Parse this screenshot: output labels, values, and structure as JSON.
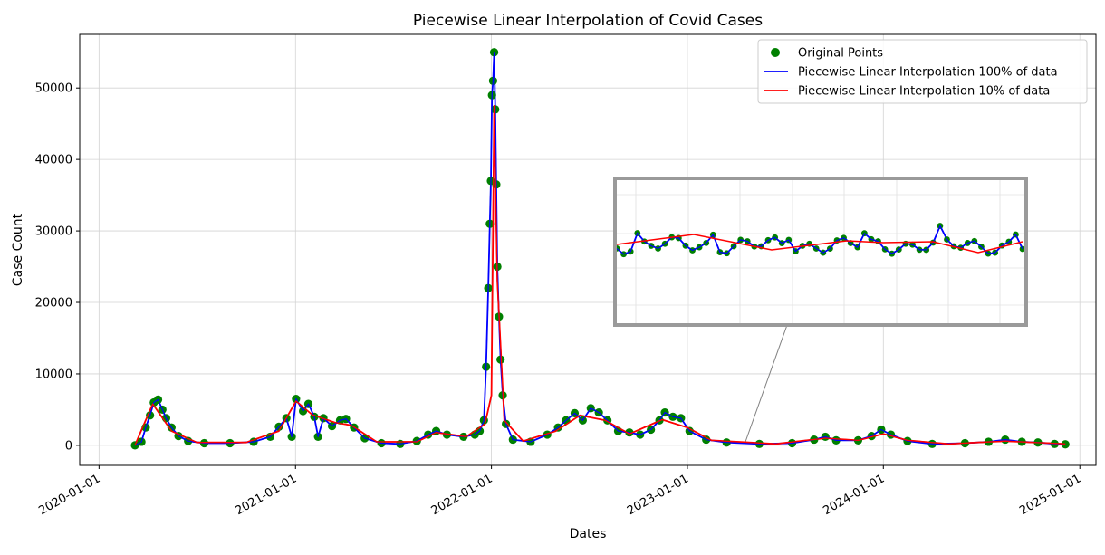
{
  "chart_data": {
    "type": "line",
    "title": "Piecewise Linear Interpolation of Covid Cases",
    "xlabel": "Dates",
    "ylabel": "Case Count",
    "x_ticks": [
      "2020-01-01",
      "2021-01-01",
      "2022-01-01",
      "2023-01-01",
      "2024-01-01",
      "2025-01-01"
    ],
    "y_ticks": [
      0,
      10000,
      20000,
      30000,
      40000,
      50000
    ],
    "xlim": [
      "2019-11-26",
      "2025-01-31"
    ],
    "ylim": [
      -2800,
      57500
    ],
    "grid": true,
    "legend_position": "top-right",
    "legend": [
      {
        "label": "Original Points",
        "color": "#008000",
        "marker": "circle"
      },
      {
        "label": "Piecewise Linear Interpolation 100% of data",
        "color": "#0000ff",
        "marker": "line"
      },
      {
        "label": "Piecewise Linear Interpolation 10% of data",
        "color": "#ff0000",
        "marker": "line"
      }
    ],
    "series": [
      {
        "name": "Piecewise Linear Interpolation 100% of data",
        "points": [
          [
            "2020-03-08",
            0
          ],
          [
            "2020-03-20",
            500
          ],
          [
            "2020-03-28",
            2500
          ],
          [
            "2020-04-05",
            4200
          ],
          [
            "2020-04-12",
            6000
          ],
          [
            "2020-04-20",
            6400
          ],
          [
            "2020-04-28",
            5000
          ],
          [
            "2020-05-05",
            3800
          ],
          [
            "2020-05-15",
            2500
          ],
          [
            "2020-05-28",
            1300
          ],
          [
            "2020-06-15",
            600
          ],
          [
            "2020-07-15",
            300
          ],
          [
            "2020-09-01",
            300
          ],
          [
            "2020-10-15",
            500
          ],
          [
            "2020-11-15",
            1200
          ],
          [
            "2020-12-01",
            2600
          ],
          [
            "2020-12-15",
            3800
          ],
          [
            "2020-12-25",
            1200
          ],
          [
            "2021-01-02",
            6500
          ],
          [
            "2021-01-15",
            4800
          ],
          [
            "2021-01-25",
            5800
          ],
          [
            "2021-02-05",
            4000
          ],
          [
            "2021-02-12",
            1200
          ],
          [
            "2021-02-22",
            3800
          ],
          [
            "2021-03-10",
            2700
          ],
          [
            "2021-03-25",
            3500
          ],
          [
            "2021-04-05",
            3700
          ],
          [
            "2021-04-20",
            2500
          ],
          [
            "2021-05-10",
            1000
          ],
          [
            "2021-06-10",
            300
          ],
          [
            "2021-07-15",
            200
          ],
          [
            "2021-08-15",
            600
          ],
          [
            "2021-09-05",
            1500
          ],
          [
            "2021-09-20",
            2000
          ],
          [
            "2021-10-10",
            1500
          ],
          [
            "2021-11-10",
            1200
          ],
          [
            "2021-12-01",
            1500
          ],
          [
            "2021-12-10",
            2000
          ],
          [
            "2021-12-18",
            3500
          ],
          [
            "2021-12-22",
            11000
          ],
          [
            "2021-12-26",
            22000
          ],
          [
            "2021-12-29",
            31000
          ],
          [
            "2021-12-31",
            37000
          ],
          [
            "2022-01-02",
            49000
          ],
          [
            "2022-01-04",
            51000
          ],
          [
            "2022-01-06",
            55000
          ],
          [
            "2022-01-08",
            47000
          ],
          [
            "2022-01-10",
            36500
          ],
          [
            "2022-01-12",
            25000
          ],
          [
            "2022-01-15",
            18000
          ],
          [
            "2022-01-18",
            12000
          ],
          [
            "2022-01-22",
            7000
          ],
          [
            "2022-01-28",
            3000
          ],
          [
            "2022-02-10",
            800
          ],
          [
            "2022-03-15",
            500
          ],
          [
            "2022-04-15",
            1500
          ],
          [
            "2022-05-05",
            2500
          ],
          [
            "2022-05-20",
            3500
          ],
          [
            "2022-06-05",
            4500
          ],
          [
            "2022-06-20",
            3500
          ],
          [
            "2022-07-05",
            5200
          ],
          [
            "2022-07-20",
            4600
          ],
          [
            "2022-08-05",
            3500
          ],
          [
            "2022-08-25",
            2000
          ],
          [
            "2022-09-15",
            1800
          ],
          [
            "2022-10-05",
            1500
          ],
          [
            "2022-10-25",
            2200
          ],
          [
            "2022-11-10",
            3500
          ],
          [
            "2022-11-20",
            4600
          ],
          [
            "2022-12-05",
            4000
          ],
          [
            "2022-12-20",
            3800
          ],
          [
            "2023-01-05",
            2000
          ],
          [
            "2023-02-05",
            800
          ],
          [
            "2023-03-15",
            400
          ],
          [
            "2023-05-15",
            200
          ],
          [
            "2023-07-15",
            300
          ],
          [
            "2023-08-25",
            800
          ],
          [
            "2023-09-15",
            1200
          ],
          [
            "2023-10-05",
            700
          ],
          [
            "2023-11-15",
            700
          ],
          [
            "2023-12-10",
            1300
          ],
          [
            "2023-12-28",
            2200
          ],
          [
            "2024-01-15",
            1500
          ],
          [
            "2024-02-15",
            600
          ],
          [
            "2024-04-01",
            200
          ],
          [
            "2024-06-01",
            300
          ],
          [
            "2024-07-15",
            500
          ],
          [
            "2024-08-15",
            800
          ],
          [
            "2024-09-15",
            500
          ],
          [
            "2024-10-15",
            400
          ],
          [
            "2024-11-15",
            200
          ],
          [
            "2024-12-05",
            150
          ]
        ]
      },
      {
        "name": "Piecewise Linear Interpolation 10% of data",
        "points": [
          [
            "2020-03-08",
            0
          ],
          [
            "2020-04-10",
            5800
          ],
          [
            "2020-05-15",
            2000
          ],
          [
            "2020-07-01",
            400
          ],
          [
            "2020-10-01",
            400
          ],
          [
            "2020-12-01",
            2000
          ],
          [
            "2021-01-02",
            6200
          ],
          [
            "2021-02-01",
            4300
          ],
          [
            "2021-03-15",
            3200
          ],
          [
            "2021-04-15",
            2800
          ],
          [
            "2021-06-01",
            500
          ],
          [
            "2021-08-15",
            500
          ],
          [
            "2021-09-20",
            1800
          ],
          [
            "2021-11-15",
            1200
          ],
          [
            "2021-12-20",
            3000
          ],
          [
            "2022-01-01",
            7000
          ],
          [
            "2022-01-06",
            47500
          ],
          [
            "2022-01-12",
            23000
          ],
          [
            "2022-01-25",
            3500
          ],
          [
            "2022-03-01",
            600
          ],
          [
            "2022-05-01",
            2000
          ],
          [
            "2022-06-15",
            4200
          ],
          [
            "2022-08-01",
            3500
          ],
          [
            "2022-09-15",
            1600
          ],
          [
            "2022-11-15",
            3600
          ],
          [
            "2023-01-01",
            2500
          ],
          [
            "2023-02-15",
            700
          ],
          [
            "2023-06-15",
            200
          ],
          [
            "2023-09-15",
            1000
          ],
          [
            "2023-11-15",
            700
          ],
          [
            "2024-01-01",
            1600
          ],
          [
            "2024-02-15",
            700
          ],
          [
            "2024-05-01",
            200
          ],
          [
            "2024-08-15",
            600
          ],
          [
            "2024-12-05",
            200
          ]
        ]
      }
    ],
    "inset": {
      "connector": true
    }
  }
}
